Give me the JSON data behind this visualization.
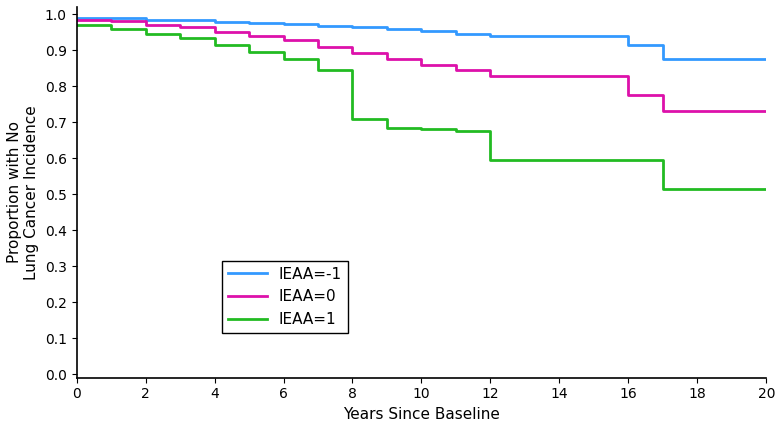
{
  "xlabel": "Years Since Baseline",
  "ylabel": "Proportion with No\nLung Cancer Incidence",
  "xlim": [
    0,
    20
  ],
  "ylim": [
    -0.01,
    1.02
  ],
  "yticks": [
    0.0,
    0.1,
    0.2,
    0.3,
    0.4,
    0.5,
    0.6,
    0.7,
    0.8,
    0.9,
    1.0
  ],
  "xticks": [
    0,
    2,
    4,
    6,
    8,
    10,
    12,
    14,
    16,
    18,
    20
  ],
  "curves": {
    "blue": {
      "label": "IEAA=-1",
      "color": "#3399ff",
      "x": [
        0,
        1,
        2,
        4,
        5,
        6,
        7,
        8,
        9,
        10,
        11,
        12,
        16,
        17,
        20
      ],
      "y": [
        0.99,
        0.99,
        0.985,
        0.978,
        0.975,
        0.972,
        0.968,
        0.963,
        0.958,
        0.952,
        0.945,
        0.94,
        0.915,
        0.875,
        0.875
      ]
    },
    "magenta": {
      "label": "IEAA=0",
      "color": "#dd11aa",
      "x": [
        0,
        1,
        2,
        3,
        4,
        5,
        6,
        7,
        8,
        9,
        10,
        11,
        12,
        16,
        17,
        20
      ],
      "y": [
        0.985,
        0.98,
        0.97,
        0.963,
        0.95,
        0.94,
        0.928,
        0.908,
        0.893,
        0.875,
        0.86,
        0.845,
        0.828,
        0.775,
        0.73,
        0.73
      ]
    },
    "green": {
      "label": "IEAA=1",
      "color": "#22bb22",
      "x": [
        0,
        1,
        2,
        3,
        4,
        5,
        6,
        7,
        8,
        9,
        10,
        11,
        12,
        16,
        17,
        20
      ],
      "y": [
        0.97,
        0.96,
        0.945,
        0.935,
        0.915,
        0.895,
        0.875,
        0.845,
        0.71,
        0.685,
        0.68,
        0.675,
        0.595,
        0.595,
        0.515,
        0.515
      ]
    }
  },
  "linewidth": 2.0,
  "fontsize_axis": 11,
  "fontsize_tick": 10,
  "fontsize_legend": 11
}
